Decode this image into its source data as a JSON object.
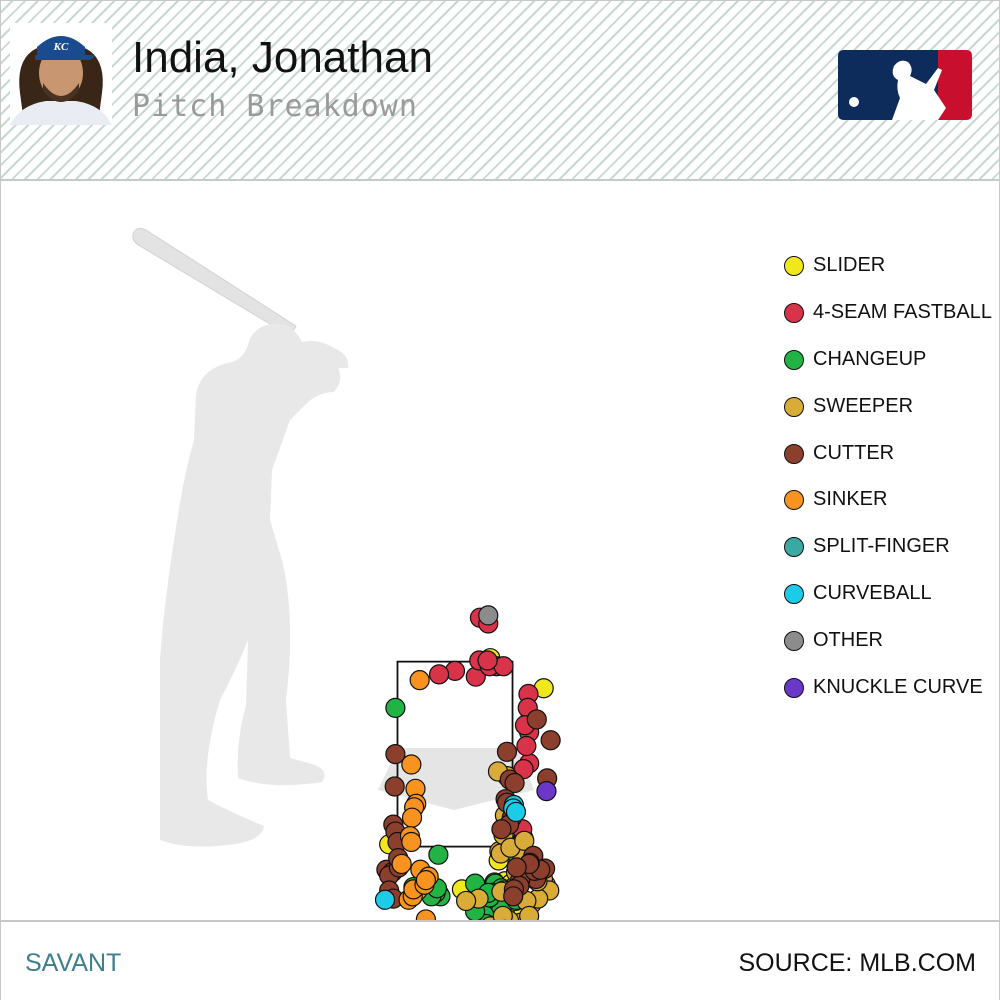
{
  "header": {
    "player_name": "India, Jonathan",
    "subtitle": "Pitch Breakdown"
  },
  "footer": {
    "left_text": "SAVANT",
    "right_text": "SOURCE: MLB.COM"
  },
  "colors": {
    "header_stripe": "#c6d9d3",
    "mlb_blue": "#0d2b5b",
    "mlb_red": "#c8102e",
    "royals_blue": "#1a4b8f",
    "savant_teal": "#3d7f8c"
  },
  "chart_data": {
    "type": "scatter",
    "title": "",
    "xlabel": "",
    "ylabel": "",
    "legend_position": "right",
    "grid": false,
    "series": [
      {
        "name": "SLIDER",
        "color": "#f0e81c",
        "points": [
          [
            0.51,
            3.13
          ],
          [
            1.28,
            2.87
          ],
          [
            -0.95,
            1.52
          ],
          [
            0.75,
            1.68
          ],
          [
            0.99,
            1.57
          ],
          [
            0.98,
            1.56
          ],
          [
            0.79,
            1.47
          ],
          [
            0.63,
            1.38
          ],
          [
            1.05,
            1.25
          ],
          [
            0.93,
            1.21
          ],
          [
            0.72,
            1.2
          ],
          [
            0.57,
            1.19
          ],
          [
            0.81,
            1.18
          ],
          [
            1.31,
            1.17
          ],
          [
            0.85,
            1.12
          ],
          [
            0.72,
            1.07
          ],
          [
            0.79,
            0.97
          ],
          [
            0.63,
            0.91
          ],
          [
            0.96,
            0.89
          ],
          [
            0.75,
            0.82
          ],
          [
            0.76,
            0.82
          ],
          [
            0.87,
            0.75
          ],
          [
            0.87,
            0.71
          ],
          [
            0.7,
            0.65
          ],
          [
            0.55,
            0.49
          ],
          [
            0.46,
            0.46
          ],
          [
            0.1,
            1.13
          ],
          [
            0.47,
            0.7
          ],
          [
            0.36,
            0.59
          ],
          [
            0.74,
            0.6
          ],
          [
            -0.1,
            0.48
          ],
          [
            0.23,
            0.3
          ],
          [
            0.02,
            0.48
          ],
          [
            0.13,
            0.39
          ],
          [
            0.31,
            0.39
          ],
          [
            0.17,
            0.41
          ],
          [
            0.27,
            0.41
          ],
          [
            0.6,
            0.31
          ],
          [
            0.87,
            1.03
          ],
          [
            0.93,
            1.05
          ]
        ]
      },
      {
        "name": "4-SEAM FASTBALL",
        "color": "#d9334a",
        "points": [
          [
            0.3,
            2.97
          ],
          [
            0.0,
            3.02
          ],
          [
            0.49,
            3.07
          ],
          [
            0.6,
            3.06
          ],
          [
            0.35,
            3.11
          ],
          [
            0.36,
            3.48
          ],
          [
            0.48,
            3.43
          ],
          [
            0.5,
            3.06
          ],
          [
            0.7,
            3.06
          ],
          [
            1.07,
            2.22
          ],
          [
            1.09,
            2.62
          ],
          [
            1.07,
            2.49
          ],
          [
            1.06,
            2.82
          ],
          [
            1.05,
            2.7
          ],
          [
            0.99,
            2.17
          ],
          [
            0.98,
            1.55
          ],
          [
            0.97,
            1.65
          ],
          [
            1.01,
            2.55
          ],
          [
            -0.23,
            2.99
          ],
          [
            0.47,
            3.11
          ],
          [
            1.03,
            2.37
          ]
        ]
      },
      {
        "name": "CHANGEUP",
        "color": "#22b345",
        "points": [
          [
            0.58,
            1.18
          ],
          [
            0.67,
            1.14
          ],
          [
            0.54,
            1.1
          ],
          [
            0.29,
            1.18
          ],
          [
            0.48,
            1.08
          ],
          [
            0.54,
            1.06
          ],
          [
            0.67,
            0.96
          ],
          [
            0.52,
            0.81
          ],
          [
            0.35,
            0.99
          ],
          [
            0.36,
            0.91
          ],
          [
            0.88,
            1.04
          ],
          [
            0.76,
            1.11
          ],
          [
            0.42,
            0.91
          ],
          [
            0.8,
            0.76
          ],
          [
            0.45,
            0.83
          ],
          [
            0.29,
            0.94
          ],
          [
            0.8,
            0.55
          ],
          [
            0.69,
            0.69
          ],
          [
            0.34,
            0.69
          ],
          [
            -0.27,
            1.14
          ],
          [
            -0.23,
            1.09
          ],
          [
            -0.21,
            1.07
          ],
          [
            -0.28,
            1.1
          ],
          [
            -0.1,
            0.44
          ],
          [
            -0.34,
            1.07
          ],
          [
            -0.26,
            1.14
          ],
          [
            0.84,
            1.46
          ],
          [
            0.5,
            1.06
          ],
          [
            0.48,
            1.1
          ],
          [
            -0.24,
            1.43
          ],
          [
            -0.45,
            1.19
          ],
          [
            -0.6,
            1.15
          ],
          [
            -0.86,
            2.7
          ]
        ]
      },
      {
        "name": "SWEEPER",
        "color": "#d9ac3a",
        "points": [
          [
            1.27,
            1.22
          ],
          [
            1.36,
            1.12
          ],
          [
            1.1,
            1.0
          ],
          [
            0.72,
            1.77
          ],
          [
            0.75,
            2.11
          ],
          [
            0.62,
            2.15
          ],
          [
            1.2,
            1.05
          ],
          [
            1.03,
            1.03
          ],
          [
            0.7,
            1.12
          ],
          [
            0.89,
            1.18
          ],
          [
            1.19,
            1.2
          ],
          [
            0.88,
            1.28
          ],
          [
            0.64,
            1.46
          ],
          [
            0.76,
            1.51
          ],
          [
            0.7,
            1.6
          ],
          [
            1.04,
            0.74
          ],
          [
            0.92,
            0.74
          ],
          [
            1.22,
            0.41
          ],
          [
            1.14,
            0.69
          ],
          [
            0.86,
            0.82
          ],
          [
            0.8,
            0.67
          ],
          [
            0.68,
            0.71
          ],
          [
            0.94,
            0.84
          ],
          [
            0.97,
            1.41
          ],
          [
            0.66,
            1.44
          ],
          [
            0.34,
            1.05
          ],
          [
            1.64,
            0.67
          ],
          [
            0.73,
            0.63
          ],
          [
            0.61,
            0.6
          ],
          [
            0.56,
            0.75
          ],
          [
            0.51,
            0.81
          ],
          [
            0.16,
            1.03
          ],
          [
            0.8,
            1.49
          ],
          [
            1.14,
            1.26
          ],
          [
            1.16,
            1.34
          ],
          [
            1.0,
            1.55
          ],
          [
            0.67,
            1.11
          ],
          [
            1.07,
            0.9
          ],
          [
            0.78,
            0.86
          ],
          [
            0.69,
            0.9
          ],
          [
            0.72,
            0.78
          ],
          [
            0.77,
            0.64
          ],
          [
            0.94,
            0.68
          ],
          [
            0.83,
            0.59
          ],
          [
            0.97,
            0.62
          ],
          [
            0.99,
            0.57
          ],
          [
            0.62,
            0.55
          ],
          [
            0.81,
            0.29
          ],
          [
            0.24,
            0.27
          ]
        ]
      },
      {
        "name": "CUTTER",
        "color": "#8b3f2c",
        "points": [
          [
            1.38,
            2.42
          ],
          [
            0.75,
            2.32
          ],
          [
            -0.86,
            2.3
          ],
          [
            -0.87,
            2.02
          ],
          [
            -0.89,
            1.69
          ],
          [
            -0.86,
            1.63
          ],
          [
            -0.99,
            1.3
          ],
          [
            -0.9,
            1.28
          ],
          [
            -0.95,
            1.25
          ],
          [
            1.18,
            2.6
          ],
          [
            1.33,
            2.09
          ],
          [
            0.79,
            2.08
          ],
          [
            0.86,
            2.05
          ],
          [
            0.73,
            1.91
          ],
          [
            0.75,
            1.88
          ],
          [
            0.82,
            1.75
          ],
          [
            0.78,
            1.69
          ],
          [
            0.67,
            1.65
          ],
          [
            1.17,
            1.22
          ],
          [
            0.94,
            1.21
          ],
          [
            0.93,
            1.16
          ],
          [
            0.85,
            1.13
          ],
          [
            0.84,
            1.07
          ],
          [
            -0.95,
            1.12
          ],
          [
            -0.83,
            1.54
          ],
          [
            1.13,
            1.42
          ],
          [
            1.15,
            1.29
          ],
          [
            1.3,
            1.31
          ],
          [
            1.23,
            1.3
          ],
          [
            1.08,
            1.36
          ],
          [
            1.07,
            1.35
          ],
          [
            0.89,
            1.32
          ],
          [
            -0.89,
            1.05
          ],
          [
            -0.81,
            1.32
          ],
          [
            -0.82,
            1.4
          ]
        ]
      },
      {
        "name": "SINKER",
        "color": "#f7931e",
        "points": [
          [
            -0.51,
            2.94
          ],
          [
            -0.63,
            2.21
          ],
          [
            -0.57,
            2.0
          ],
          [
            -0.56,
            1.87
          ],
          [
            -0.59,
            1.84
          ],
          [
            -0.62,
            1.75
          ],
          [
            -0.65,
            1.59
          ],
          [
            -0.63,
            1.54
          ],
          [
            -0.77,
            1.35
          ],
          [
            -0.5,
            1.3
          ],
          [
            -0.54,
            1.12
          ],
          [
            -0.67,
            1.04
          ],
          [
            -0.61,
            1.07
          ],
          [
            -0.38,
            1.24
          ],
          [
            -0.42,
            0.87
          ],
          [
            -0.6,
            1.13
          ],
          [
            -0.44,
            1.17
          ],
          [
            -0.42,
            1.21
          ],
          [
            0.43,
            0.56
          ],
          [
            0.36,
            0.63
          ]
        ]
      },
      {
        "name": "SPLIT-FINGER",
        "color": "#3aa9a3",
        "points": [
          [
            1.01,
            0.12
          ],
          [
            0.47,
            0.66
          ],
          [
            0.4,
            0.71
          ],
          [
            0.56,
            0.77
          ],
          [
            0.3,
            0.55
          ],
          [
            0.19,
            0.62
          ],
          [
            0.39,
            0.73
          ],
          [
            0.33,
            0.66
          ]
        ]
      },
      {
        "name": "CURVEBALL",
        "color": "#1ccbe8",
        "points": [
          [
            -1.01,
            1.04
          ],
          [
            0.85,
            1.86
          ],
          [
            0.84,
            1.83
          ],
          [
            0.88,
            1.8
          ]
        ]
      },
      {
        "name": "OTHER",
        "color": "#8c8c8c",
        "points": [
          [
            0.48,
            3.5
          ]
        ]
      },
      {
        "name": "KNUCKLE CURVE",
        "color": "#6a37c8",
        "points": [
          [
            1.32,
            1.98
          ]
        ]
      }
    ],
    "strike_zone": {
      "x": [
        -0.83,
        0.83
      ],
      "y": [
        1.5,
        3.1
      ]
    }
  }
}
